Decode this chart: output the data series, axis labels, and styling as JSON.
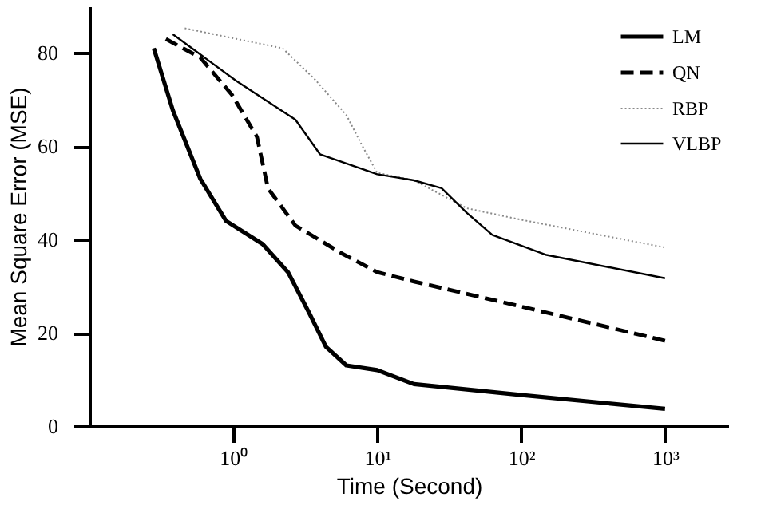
{
  "chart_data": {
    "type": "line",
    "xlabel": "Time (Second)",
    "ylabel": "Mean Square Error (MSE)",
    "log": "x",
    "grid": false,
    "legend": "top right",
    "marker": "none",
    "xlim": [
      0.1,
      2750
    ],
    "ylim": [
      0,
      90
    ],
    "xticks": [
      {
        "value": 1,
        "label": "10⁰"
      },
      {
        "value": 10,
        "label": "10¹"
      },
      {
        "value": 100,
        "label": "10²"
      },
      {
        "value": 1000,
        "label": "10³"
      }
    ],
    "yticks": [
      0,
      20,
      40,
      60,
      80
    ],
    "series": [
      {
        "name": "LM",
        "color": "#000000",
        "line_style": "solid",
        "x": [
          0.28,
          0.38,
          0.59,
          0.89,
          1.6,
          2.4,
          3.4,
          4.4,
          6.1,
          10,
          18,
          98,
          1000
        ],
        "values": [
          81,
          67.7,
          53,
          44,
          39,
          33,
          24,
          17,
          13,
          12,
          9,
          6.7,
          3.7
        ]
      },
      {
        "name": "QN",
        "color": "#000000",
        "line_style": "dashed",
        "x": [
          0.34,
          0.59,
          0.98,
          1.46,
          1.74,
          2.7,
          5.7,
          10,
          18,
          98,
          1000
        ],
        "values": [
          83,
          79,
          71,
          62,
          51,
          43,
          37,
          33,
          31,
          25.7,
          18.3
        ]
      },
      {
        "name": "RBP",
        "color": "#888888",
        "line_style": "dotted",
        "x": [
          0.46,
          2.2,
          3.7,
          6.1,
          7.9,
          10,
          18,
          42,
          98,
          1000
        ],
        "values": [
          85.3,
          81,
          74.3,
          66.7,
          60,
          54.3,
          52.7,
          46.7,
          44.3,
          38.3
        ]
      },
      {
        "name": "VLBP",
        "color": "#000000",
        "line_style": "solid",
        "x": [
          0.38,
          1.05,
          2.7,
          4.0,
          10,
          18,
          28,
          42,
          63,
          150,
          1000
        ],
        "values": [
          84,
          74,
          65.7,
          58.3,
          54,
          52.7,
          51,
          45.7,
          41,
          36.7,
          31.7
        ]
      }
    ]
  }
}
